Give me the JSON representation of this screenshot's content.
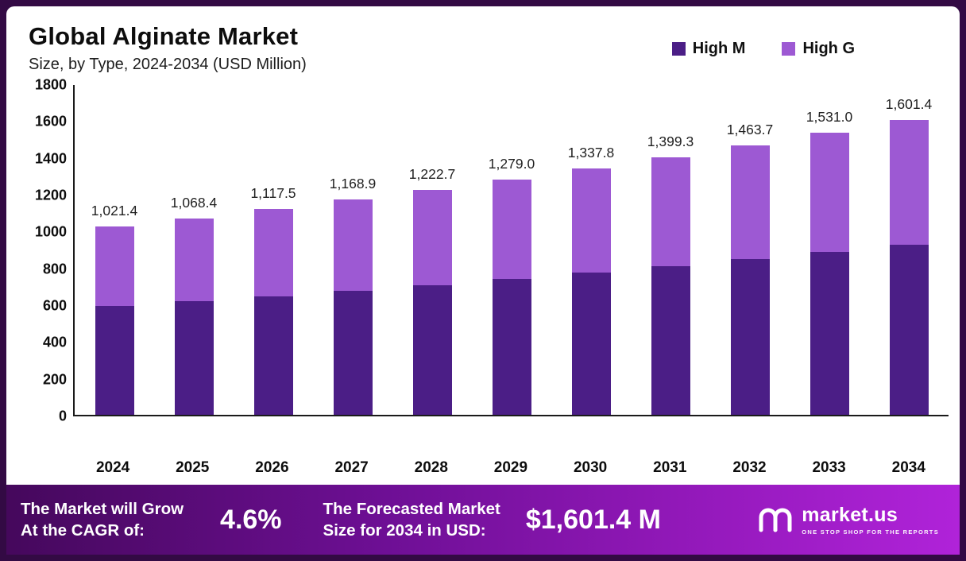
{
  "header": {
    "title": "Global Alginate Market",
    "subtitle": "Size, by Type, 2024-2034 (USD Million)"
  },
  "colors": {
    "high_m": "#4b1e86",
    "high_g": "#9d59d3",
    "frame_border": "#330a44"
  },
  "chart_data": {
    "type": "bar",
    "stacked": true,
    "title": "Global Alginate Market",
    "subtitle": "Size, by Type, 2024-2034 (USD Million)",
    "xlabel": "",
    "ylabel": "USD Million",
    "ylim": [
      0,
      1800
    ],
    "yticks": [
      1800,
      1600,
      1400,
      1200,
      1000,
      800,
      600,
      400,
      200,
      0
    ],
    "grid": false,
    "legend_position": "top-right",
    "categories": [
      "2024",
      "2025",
      "2026",
      "2027",
      "2028",
      "2029",
      "2030",
      "2031",
      "2032",
      "2033",
      "2034"
    ],
    "series": [
      {
        "name": "High M",
        "color": "#4b1e86",
        "values": [
          590,
          617,
          645,
          674,
          705,
          737,
          771,
          806,
          845,
          884,
          925
        ]
      },
      {
        "name": "High G",
        "color": "#9d59d3",
        "values": [
          431.4,
          451.4,
          472.5,
          494.9,
          517.7,
          542.0,
          566.8,
          593.3,
          618.7,
          647.0,
          676.4
        ]
      }
    ],
    "totals": [
      1021.4,
      1068.4,
      1117.5,
      1168.9,
      1222.7,
      1279.0,
      1337.8,
      1399.3,
      1463.7,
      1531.0,
      1601.4
    ],
    "total_labels": [
      "1,021.4",
      "1,068.4",
      "1,117.5",
      "1,168.9",
      "1,222.7",
      "1,279.0",
      "1,337.8",
      "1,399.3",
      "1,463.7",
      "1,531.0",
      "1,601.4"
    ]
  },
  "legend": [
    {
      "label": "High M",
      "color": "#4b1e86"
    },
    {
      "label": "High G",
      "color": "#9d59d3"
    }
  ],
  "banner": {
    "cagr_label": "The Market will Grow\nAt the CAGR of:",
    "cagr_value": "4.6%",
    "forecast_label": "The Forecasted Market\nSize for 2034 in USD:",
    "forecast_value": "$1,601.4 M",
    "logo_text": "market.us",
    "logo_tagline": "ONE STOP SHOP FOR THE REPORTS"
  }
}
